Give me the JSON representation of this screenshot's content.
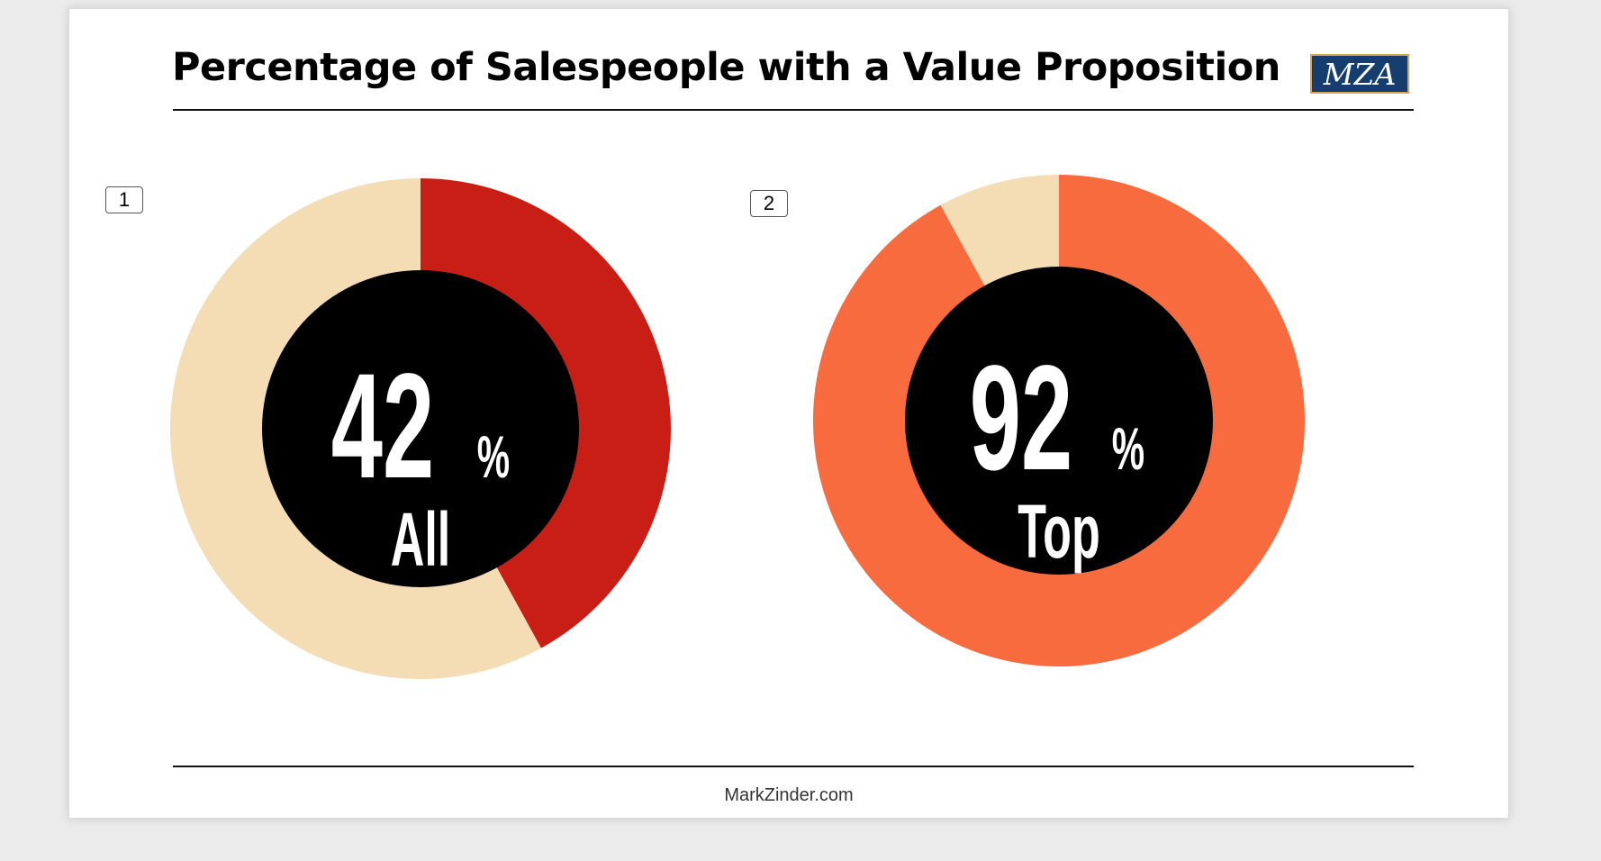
{
  "slide": {
    "title": "Percentage of Salespeople with a Value Proposition",
    "logo_text": "MZA",
    "footer": "MarkZinder.com",
    "colors": {
      "logo_bg": "#153e6e",
      "logo_border": "#d2a75a"
    }
  },
  "chart_data": [
    {
      "type": "pie",
      "tag": "1",
      "value": 42,
      "value_text": "42",
      "percent_sign": "%",
      "center_label": "All",
      "slices": [
        {
          "value": 42,
          "color": "#c81e16"
        },
        {
          "value": 58,
          "color": "#f4ddb5"
        }
      ],
      "center_color": "#000000"
    },
    {
      "type": "pie",
      "tag": "2",
      "value": 92,
      "value_text": "92",
      "percent_sign": "%",
      "center_label": "Top",
      "slices": [
        {
          "value": 92,
          "color": "#f76b3e"
        },
        {
          "value": 8,
          "color": "#f4ddb5"
        }
      ],
      "center_color": "#000000"
    }
  ]
}
